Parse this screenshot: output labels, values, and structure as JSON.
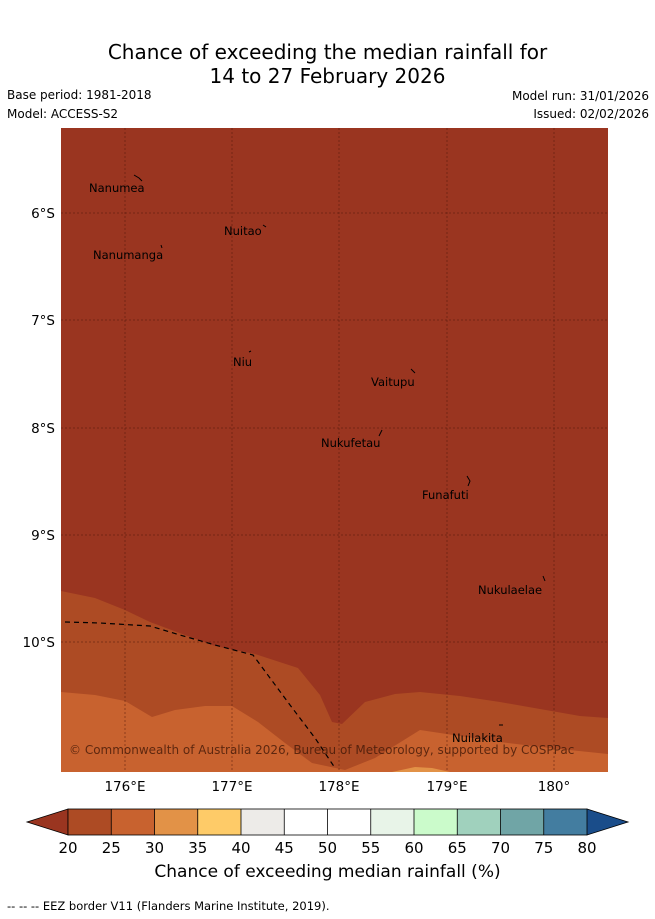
{
  "title_line1": "Chance of exceeding the median rainfall for",
  "title_line2": "14 to 27 February 2026",
  "base_period": "Base period: 1981-2018",
  "model": "Model: ACCESS-S2",
  "model_run": "Model run: 31/01/2026",
  "issued": "Issued: 02/02/2026",
  "copyright": "© Commonwealth of Australia 2026, Bureau of Meteorology, supported by COSPPac",
  "lat_labels": [
    "6°S",
    "7°S",
    "8°S",
    "9°S",
    "10°S"
  ],
  "lon_labels": [
    "176°E",
    "177°E",
    "178°E",
    "179°E",
    "180°"
  ],
  "places": [
    {
      "name": "Nanumea"
    },
    {
      "name": "Nuitao"
    },
    {
      "name": "Nanumanga"
    },
    {
      "name": "Niu"
    },
    {
      "name": "Vaitupu"
    },
    {
      "name": "Nukufetau"
    },
    {
      "name": "Funafuti"
    },
    {
      "name": "Nukulaelae"
    },
    {
      "name": "Nuilakita"
    }
  ],
  "colorbar": {
    "title": "Chance of exceeding median rainfall (%)",
    "ticks": [
      "20",
      "25",
      "30",
      "35",
      "40",
      "45",
      "50",
      "55",
      "60",
      "65",
      "70",
      "75",
      "80"
    ],
    "colors": [
      "#ad4b24",
      "#c8622f",
      "#e29247",
      "#fecb68",
      "#edebe8",
      "#ffffff",
      "#ffffff",
      "#e8f4e8",
      "#cbfbcb",
      "#a0d1bd",
      "#70a5a6",
      "#437da0",
      "#1a4d8a"
    ],
    "under_color": "#9a3520",
    "over_color": "#1a4d8a"
  },
  "footer": "--  --  -- EEZ border V11 (Flanders Marine Institute, 2019)."
}
